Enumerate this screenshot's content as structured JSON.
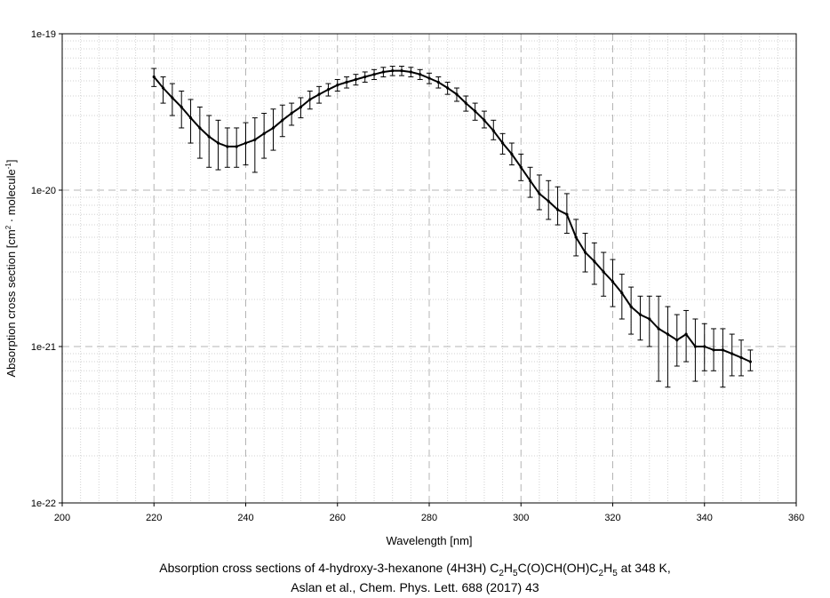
{
  "chart_data": {
    "type": "line",
    "xlabel": "Wavelength [nm]",
    "ylabel_parts": [
      "Absorption cross section [cm",
      "2",
      " · molecule",
      "-1",
      "]"
    ],
    "xlim": [
      200,
      360
    ],
    "ylim": [
      1e-22,
      1e-19
    ],
    "yscale": "log",
    "grid": true,
    "legend": "none",
    "x_ticks": [
      "200",
      "220",
      "240",
      "260",
      "280",
      "300",
      "320",
      "340",
      "360"
    ],
    "y_ticks": [
      "1e-22",
      "1e-21",
      "1e-20",
      "1e-19"
    ],
    "x": [
      220,
      222,
      224,
      226,
      228,
      230,
      232,
      234,
      236,
      238,
      240,
      242,
      244,
      246,
      248,
      250,
      252,
      254,
      256,
      258,
      260,
      262,
      264,
      266,
      268,
      270,
      272,
      274,
      276,
      278,
      280,
      282,
      284,
      286,
      288,
      290,
      292,
      294,
      296,
      298,
      300,
      302,
      304,
      306,
      308,
      310,
      312,
      314,
      316,
      318,
      320,
      322,
      324,
      326,
      328,
      330,
      332,
      334,
      336,
      338,
      340,
      342,
      344,
      346,
      348,
      350
    ],
    "y": [
      5.3e-20,
      4.5e-20,
      3.9e-20,
      3.4e-20,
      2.9e-20,
      2.5e-20,
      2.2e-20,
      2e-20,
      1.9e-20,
      1.9e-20,
      2e-20,
      2.1e-20,
      2.3e-20,
      2.5e-20,
      2.8e-20,
      3.1e-20,
      3.4e-20,
      3.8e-20,
      4.1e-20,
      4.4e-20,
      4.7e-20,
      4.9e-20,
      5.1e-20,
      5.3e-20,
      5.5e-20,
      5.7e-20,
      5.8e-20,
      5.8e-20,
      5.7e-20,
      5.5e-20,
      5.2e-20,
      4.9e-20,
      4.5e-20,
      4.1e-20,
      3.6e-20,
      3.2e-20,
      2.8e-20,
      2.4e-20,
      2e-20,
      1.7e-20,
      1.4e-20,
      1.15e-20,
      9.5e-21,
      8.5e-21,
      7.5e-21,
      7e-21,
      5e-21,
      4e-21,
      3.5e-21,
      3e-21,
      2.6e-21,
      2.2e-21,
      1.8e-21,
      1.6e-21,
      1.5e-21,
      1.3e-21,
      1.2e-21,
      1.1e-21,
      1.2e-21,
      1e-21,
      1e-21,
      9.5e-22,
      9.5e-22,
      9e-22,
      8.5e-22,
      8e-22
    ],
    "y_err_low": [
      4.6e-20,
      3.6e-20,
      3e-20,
      2.5e-20,
      2e-20,
      1.6e-20,
      1.4e-20,
      1.35e-20,
      1.4e-20,
      1.4e-20,
      1.45e-20,
      1.3e-20,
      1.6e-20,
      1.8e-20,
      2.2e-20,
      2.6e-20,
      2.9e-20,
      3.3e-20,
      3.6e-20,
      4e-20,
      4.3e-20,
      4.5e-20,
      4.7e-20,
      4.9e-20,
      5.1e-20,
      5.3e-20,
      5.4e-20,
      5.4e-20,
      5.3e-20,
      5.1e-20,
      4.8e-20,
      4.5e-20,
      4.1e-20,
      3.7e-20,
      3.2e-20,
      2.8e-20,
      2.5e-20,
      2.1e-20,
      1.7e-20,
      1.45e-20,
      1.15e-20,
      9e-21,
      7.5e-21,
      6.5e-21,
      6e-21,
      5.3e-21,
      3.8e-21,
      3e-21,
      2.5e-21,
      2.1e-21,
      1.8e-21,
      1.5e-21,
      1.2e-21,
      1.1e-21,
      1e-21,
      6e-22,
      5.5e-22,
      7.5e-22,
      8e-22,
      6e-22,
      7e-22,
      7e-22,
      5.5e-22,
      6.5e-22,
      6.5e-22,
      7e-22
    ],
    "y_err_high": [
      6e-20,
      5.3e-20,
      4.8e-20,
      4.3e-20,
      3.8e-20,
      3.4e-20,
      3e-20,
      2.8e-20,
      2.5e-20,
      2.5e-20,
      2.7e-20,
      2.9e-20,
      3.1e-20,
      3.3e-20,
      3.5e-20,
      3.6e-20,
      3.9e-20,
      4.3e-20,
      4.6e-20,
      4.8e-20,
      5.1e-20,
      5.3e-20,
      5.5e-20,
      5.7e-20,
      5.9e-20,
      6.1e-20,
      6.2e-20,
      6.2e-20,
      6.1e-20,
      5.9e-20,
      5.6e-20,
      5.3e-20,
      4.9e-20,
      4.5e-20,
      4e-20,
      3.6e-20,
      3.2e-20,
      2.8e-20,
      2.3e-20,
      2e-20,
      1.7e-20,
      1.4e-20,
      1.25e-20,
      1.15e-20,
      1.05e-20,
      9.5e-21,
      6.5e-21,
      5.3e-21,
      4.6e-21,
      4e-21,
      3.6e-21,
      2.9e-21,
      2.4e-21,
      2.1e-21,
      2.1e-21,
      2.1e-21,
      1.8e-21,
      1.6e-21,
      1.7e-21,
      1.5e-21,
      1.4e-21,
      1.3e-21,
      1.3e-21,
      1.2e-21,
      1.1e-21,
      9.5e-22
    ]
  },
  "caption": {
    "line1_pre": "Absorption cross sections of 4-hydroxy-3-hexanone (4H3H) C",
    "sub1": "2",
    "mid1": "H",
    "sub2": "5",
    "mid2": "C(O)CH(OH)C",
    "sub3": "2",
    "mid3": "H",
    "sub4": "5",
    "line1_post": " at 348 K,",
    "line2": "Aslan et al., Chem. Phys. Lett. 688 (2017) 43"
  }
}
